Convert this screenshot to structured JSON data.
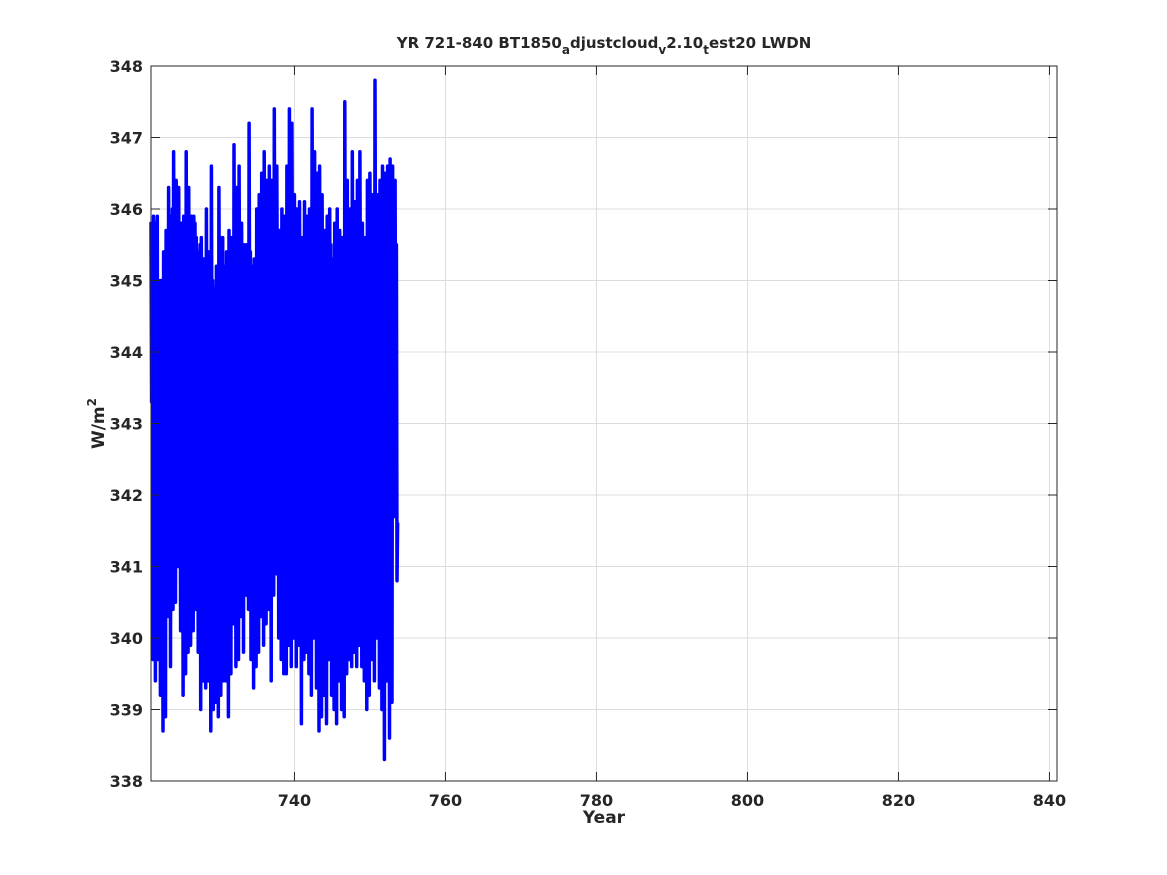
{
  "chart_data": {
    "type": "line",
    "title": {
      "parts": [
        {
          "text": "YR 721-840 BT1850",
          "shift": "none"
        },
        {
          "text": "a",
          "shift": "sub"
        },
        {
          "text": "djustcloud",
          "shift": "none"
        },
        {
          "text": "v",
          "shift": "sub"
        },
        {
          "text": "2.10",
          "shift": "none"
        },
        {
          "text": "t",
          "shift": "sub"
        },
        {
          "text": "est20 LWDN",
          "shift": "none"
        }
      ]
    },
    "xlabel": "Year",
    "ylabel": {
      "base": "W/m",
      "sup": "2"
    },
    "xlim": [
      721,
      841
    ],
    "ylim": [
      338,
      348
    ],
    "xticks": [
      740,
      760,
      780,
      800,
      820,
      840
    ],
    "yticks": [
      338,
      339,
      340,
      341,
      342,
      343,
      344,
      345,
      346,
      347,
      348
    ],
    "grid": true,
    "line_color": "#0000ff",
    "series": [
      {
        "x_start": 721,
        "x_step": 0.083333,
        "values": [
          345.8,
          343.3,
          345.6,
          339.7,
          345.9,
          343.7,
          345.7,
          339.4,
          345.8,
          344.3,
          345.9,
          339.7,
          345.0,
          342.8,
          344.2,
          339.2,
          345.0,
          342.4,
          344.1,
          338.7,
          345.4,
          342.3,
          344.2,
          338.9,
          345.7,
          342.8,
          345.6,
          340.3,
          346.3,
          343.6,
          345.8,
          339.6,
          345.9,
          344.0,
          346.0,
          340.4,
          346.8,
          344.3,
          346.1,
          340.5,
          346.4,
          344.2,
          345.9,
          341.0,
          346.3,
          343.7,
          345.6,
          340.1,
          345.8,
          343.9,
          345.5,
          339.2,
          345.9,
          344.0,
          345.8,
          339.5,
          346.8,
          343.5,
          345.8,
          339.8,
          346.3,
          344.2,
          345.5,
          339.9,
          345.9,
          343.6,
          345.4,
          340.1,
          345.9,
          343.2,
          345.8,
          340.4,
          345.6,
          343.3,
          345.4,
          339.8,
          344.9,
          343.0,
          345.5,
          339.0,
          345.6,
          343.4,
          345.2,
          339.4,
          345.3,
          343.6,
          345.1,
          339.3,
          346.0,
          343.8,
          345.0,
          339.4,
          345.4,
          343.6,
          344.9,
          338.7,
          346.6,
          343.6,
          345.0,
          339.0,
          344.9,
          343.5,
          344.8,
          339.1,
          345.2,
          343.6,
          345.0,
          338.9,
          346.3,
          343.8,
          345.6,
          339.2,
          345.4,
          343.4,
          345.6,
          339.4,
          345.2,
          343.4,
          345.1,
          339.4,
          345.4,
          343.0,
          344.8,
          338.9,
          345.7,
          343.3,
          345.0,
          339.5,
          345.6,
          343.5,
          345.1,
          340.2,
          346.9,
          343.6,
          345.5,
          339.6,
          346.3,
          343.9,
          345.5,
          339.7,
          346.6,
          343.9,
          345.2,
          340.3,
          345.8,
          343.5,
          345.3,
          339.8,
          345.5,
          343.1,
          345.4,
          340.6,
          345.5,
          343.7,
          345.5,
          340.4,
          347.2,
          343.8,
          345.4,
          339.7,
          345.2,
          343.4,
          345.2,
          339.3,
          345.3,
          343.7,
          345.2,
          339.6,
          346.0,
          343.5,
          345.4,
          339.8,
          346.2,
          343.9,
          345.6,
          340.3,
          346.5,
          343.8,
          345.8,
          339.9,
          346.8,
          344.3,
          345.6,
          340.2,
          346.4,
          344.2,
          345.5,
          340.4,
          346.6,
          344.3,
          345.6,
          339.4,
          346.4,
          344.0,
          345.5,
          340.6,
          347.4,
          344.3,
          345.8,
          340.9,
          346.6,
          344.1,
          345.3,
          340.0,
          345.7,
          343.8,
          345.4,
          339.7,
          346.0,
          343.9,
          345.4,
          339.5,
          345.9,
          344.0,
          345.3,
          339.5,
          346.6,
          344.1,
          345.2,
          339.9,
          347.4,
          344.0,
          345.4,
          339.6,
          347.2,
          344.4,
          345.8,
          340.0,
          346.2,
          344.3,
          345.4,
          339.6,
          346.0,
          343.7,
          345.1,
          339.9,
          346.1,
          344.1,
          345.5,
          338.8,
          345.6,
          343.9,
          345.1,
          339.7,
          346.1,
          344.3,
          345.4,
          339.8,
          345.9,
          344.2,
          345.0,
          339.5,
          346.0,
          344.2,
          345.3,
          339.2,
          347.4,
          343.7,
          345.2,
          340.0,
          346.8,
          343.8,
          345.1,
          339.3,
          346.5,
          343.5,
          345.3,
          338.7,
          346.6,
          343.7,
          345.2,
          338.9,
          346.2,
          343.5,
          345.0,
          339.2,
          345.7,
          343.8,
          345.0,
          338.8,
          345.9,
          343.6,
          345.2,
          339.7,
          346.0,
          343.9,
          345.5,
          339.2,
          345.3,
          343.4,
          345.0,
          339.0,
          345.8,
          343.6,
          345.6,
          338.8,
          346.0,
          343.3,
          345.3,
          339.4,
          345.7,
          343.9,
          345.6,
          339.0,
          345.6,
          343.7,
          345.4,
          338.9,
          347.5,
          343.8,
          345.6,
          339.5,
          346.4,
          343.6,
          345.6,
          339.7,
          346.0,
          343.8,
          345.7,
          339.6,
          346.8,
          343.8,
          345.8,
          339.8,
          346.1,
          344.2,
          345.7,
          339.6,
          346.4,
          344.3,
          345.9,
          339.9,
          346.8,
          344.3,
          345.7,
          339.6,
          345.8,
          343.5,
          345.4,
          339.4,
          345.6,
          343.8,
          345.4,
          339.0,
          346.4,
          343.9,
          345.6,
          339.2,
          346.5,
          344.4,
          345.7,
          339.7,
          346.2,
          344.0,
          345.6,
          339.4,
          347.8,
          344.5,
          345.9,
          340.0,
          346.2,
          344.0,
          345.7,
          339.3,
          346.4,
          344.2,
          345.8,
          339.0,
          346.6,
          344.4,
          345.9,
          338.3,
          346.5,
          344.0,
          345.5,
          339.4,
          346.6,
          344.1,
          345.4,
          338.6,
          346.7,
          343.9,
          345.3,
          339.1,
          346.6,
          344.0,
          345.8,
          341.7,
          346.4,
          343.2,
          345.5,
          340.8,
          341.6
        ]
      }
    ]
  }
}
